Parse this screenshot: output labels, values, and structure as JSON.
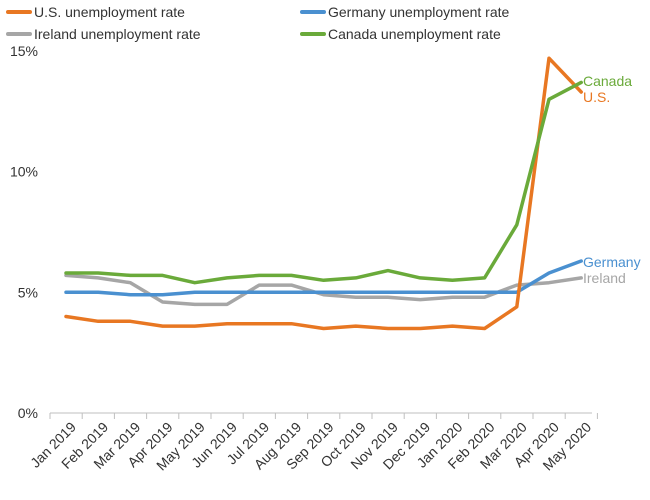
{
  "chart_data": {
    "type": "line",
    "title": "",
    "xlabel": "",
    "ylabel": "",
    "categories": [
      "Jan 2019",
      "Feb 2019",
      "Mar 2019",
      "Apr 2019",
      "May 2019",
      "Jun 2019",
      "Jul 2019",
      "Aug 2019",
      "Sep 2019",
      "Oct 2019",
      "Nov 2019",
      "Dec 2019",
      "Jan 2020",
      "Feb 2020",
      "Mar 2020",
      "Apr 2020",
      "May 2020"
    ],
    "ylim": [
      0,
      15
    ],
    "yticks": [
      0,
      5,
      10,
      15
    ],
    "ytick_labels": [
      "0%",
      "5%",
      "10%",
      "15%"
    ],
    "grid": false,
    "legend_position": "top",
    "series": [
      {
        "name": "U.S. unemployment rate",
        "end_label": "U.S.",
        "color": "#E87722",
        "values": [
          4.0,
          3.8,
          3.8,
          3.6,
          3.6,
          3.7,
          3.7,
          3.7,
          3.5,
          3.6,
          3.5,
          3.5,
          3.6,
          3.5,
          4.4,
          14.7,
          13.3
        ]
      },
      {
        "name": "Germany unemployment rate",
        "end_label": "Germany",
        "color": "#4A90D0",
        "values": [
          5.0,
          5.0,
          4.9,
          4.9,
          5.0,
          5.0,
          5.0,
          5.0,
          5.0,
          5.0,
          5.0,
          5.0,
          5.0,
          5.0,
          5.0,
          5.8,
          6.3
        ]
      },
      {
        "name": "Ireland unemployment rate",
        "end_label": "Ireland",
        "color": "#A6A6A6",
        "values": [
          5.7,
          5.6,
          5.4,
          4.6,
          4.5,
          4.5,
          5.3,
          5.3,
          4.9,
          4.8,
          4.8,
          4.7,
          4.8,
          4.8,
          5.3,
          5.4,
          5.6
        ]
      },
      {
        "name": "Canada unemployment rate",
        "end_label": "Canada",
        "color": "#6AAA3A",
        "values": [
          5.8,
          5.8,
          5.7,
          5.7,
          5.4,
          5.6,
          5.7,
          5.7,
          5.5,
          5.6,
          5.9,
          5.6,
          5.5,
          5.6,
          7.8,
          13.0,
          13.7
        ]
      }
    ]
  }
}
